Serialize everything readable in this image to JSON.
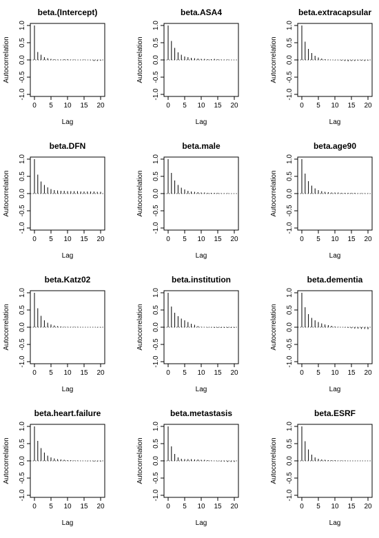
{
  "axis_labels": {
    "x": "Lag",
    "y": "Autocorrelation"
  },
  "chart_data": [
    {
      "type": "bar",
      "title": "beta.(Intercept)",
      "xlabel": "Lag",
      "ylabel": "Autocorrelation",
      "xlim": [
        0,
        20
      ],
      "ylim": [
        -1,
        1
      ],
      "x_ticks": [
        "0",
        "5",
        "10",
        "15",
        "20"
      ],
      "y_ticks": [
        "-1.0",
        "-0.5",
        "0.0",
        "0.5",
        "1.0"
      ],
      "lags": [
        0,
        1,
        2,
        3,
        4,
        5,
        6,
        7,
        8,
        9,
        10,
        11,
        12,
        13,
        14,
        15,
        16,
        17,
        18,
        19,
        20
      ],
      "values": [
        1.0,
        0.23,
        0.15,
        0.08,
        0.05,
        0.03,
        0.02,
        0.01,
        0.01,
        0.02,
        0.02,
        0.01,
        0.01,
        0.0,
        0.0,
        0.01,
        0.0,
        -0.01,
        -0.03,
        -0.03,
        -0.02
      ]
    },
    {
      "type": "bar",
      "title": "beta.ASA4",
      "xlabel": "Lag",
      "ylabel": "Autocorrelation",
      "xlim": [
        0,
        20
      ],
      "ylim": [
        -1,
        1
      ],
      "x_ticks": [
        "0",
        "5",
        "10",
        "15",
        "20"
      ],
      "y_ticks": [
        "-1.0",
        "-0.5",
        "0.0",
        "0.5",
        "1.0"
      ],
      "lags": [
        0,
        1,
        2,
        3,
        4,
        5,
        6,
        7,
        8,
        9,
        10,
        11,
        12,
        13,
        14,
        15,
        16,
        17,
        18,
        19,
        20
      ],
      "values": [
        1.0,
        0.55,
        0.35,
        0.22,
        0.15,
        0.1,
        0.08,
        0.06,
        0.05,
        0.04,
        0.03,
        0.03,
        0.02,
        0.02,
        0.03,
        0.02,
        0.01,
        0.01,
        0.01,
        0.0,
        0.0
      ]
    },
    {
      "type": "bar",
      "title": "beta.extracapsular",
      "xlabel": "Lag",
      "ylabel": "Autocorrelation",
      "xlim": [
        0,
        20
      ],
      "ylim": [
        -1,
        1
      ],
      "x_ticks": [
        "0",
        "5",
        "10",
        "15",
        "20"
      ],
      "y_ticks": [
        "-1.0",
        "-0.5",
        "0.0",
        "0.5",
        "1.0"
      ],
      "lags": [
        0,
        1,
        2,
        3,
        4,
        5,
        6,
        7,
        8,
        9,
        10,
        11,
        12,
        13,
        14,
        15,
        16,
        17,
        18,
        19,
        20
      ],
      "values": [
        1.0,
        0.53,
        0.32,
        0.2,
        0.12,
        0.07,
        0.04,
        0.02,
        0.01,
        0.0,
        -0.01,
        -0.01,
        -0.02,
        -0.03,
        -0.04,
        -0.03,
        -0.03,
        -0.02,
        -0.02,
        -0.03,
        -0.02
      ]
    },
    {
      "type": "bar",
      "title": "beta.DFN",
      "xlabel": "Lag",
      "ylabel": "Autocorrelation",
      "xlim": [
        0,
        20
      ],
      "ylim": [
        -1,
        1
      ],
      "x_ticks": [
        "0",
        "5",
        "10",
        "15",
        "20"
      ],
      "y_ticks": [
        "-1.0",
        "-0.5",
        "0.0",
        "0.5",
        "1.0"
      ],
      "lags": [
        0,
        1,
        2,
        3,
        4,
        5,
        6,
        7,
        8,
        9,
        10,
        11,
        12,
        13,
        14,
        15,
        16,
        17,
        18,
        19,
        20
      ],
      "values": [
        1.0,
        0.55,
        0.35,
        0.25,
        0.18,
        0.13,
        0.1,
        0.09,
        0.08,
        0.08,
        0.07,
        0.07,
        0.07,
        0.07,
        0.06,
        0.06,
        0.06,
        0.06,
        0.06,
        0.05,
        0.05
      ]
    },
    {
      "type": "bar",
      "title": "beta.male",
      "xlabel": "Lag",
      "ylabel": "Autocorrelation",
      "xlim": [
        0,
        20
      ],
      "ylim": [
        -1,
        1
      ],
      "x_ticks": [
        "0",
        "5",
        "10",
        "15",
        "20"
      ],
      "y_ticks": [
        "-1.0",
        "-0.5",
        "0.0",
        "0.5",
        "1.0"
      ],
      "lags": [
        0,
        1,
        2,
        3,
        4,
        5,
        6,
        7,
        8,
        9,
        10,
        11,
        12,
        13,
        14,
        15,
        16,
        17,
        18,
        19,
        20
      ],
      "values": [
        1.0,
        0.6,
        0.38,
        0.25,
        0.17,
        0.12,
        0.08,
        0.06,
        0.05,
        0.04,
        0.03,
        0.03,
        0.02,
        0.02,
        0.02,
        0.02,
        0.01,
        0.01,
        0.01,
        0.0,
        0.0
      ]
    },
    {
      "type": "bar",
      "title": "beta.age90",
      "xlabel": "Lag",
      "ylabel": "Autocorrelation",
      "xlim": [
        0,
        20
      ],
      "ylim": [
        -1,
        1
      ],
      "x_ticks": [
        "0",
        "5",
        "10",
        "15",
        "20"
      ],
      "y_ticks": [
        "-1.0",
        "-0.5",
        "0.0",
        "0.5",
        "1.0"
      ],
      "lags": [
        0,
        1,
        2,
        3,
        4,
        5,
        6,
        7,
        8,
        9,
        10,
        11,
        12,
        13,
        14,
        15,
        16,
        17,
        18,
        19,
        20
      ],
      "values": [
        1.0,
        0.58,
        0.36,
        0.23,
        0.15,
        0.1,
        0.07,
        0.05,
        0.04,
        0.03,
        0.03,
        0.03,
        0.02,
        0.02,
        0.02,
        0.02,
        0.02,
        0.01,
        0.01,
        0.01,
        0.01
      ]
    },
    {
      "type": "bar",
      "title": "beta.Katz02",
      "xlabel": "Lag",
      "ylabel": "Autocorrelation",
      "xlim": [
        0,
        20
      ],
      "ylim": [
        -1,
        1
      ],
      "x_ticks": [
        "0",
        "5",
        "10",
        "15",
        "20"
      ],
      "y_ticks": [
        "-1.0",
        "-0.5",
        "0.0",
        "0.5",
        "1.0"
      ],
      "lags": [
        0,
        1,
        2,
        3,
        4,
        5,
        6,
        7,
        8,
        9,
        10,
        11,
        12,
        13,
        14,
        15,
        16,
        17,
        18,
        19,
        20
      ],
      "values": [
        1.0,
        0.55,
        0.33,
        0.2,
        0.13,
        0.08,
        0.05,
        0.03,
        0.02,
        0.01,
        0.01,
        0.01,
        0.01,
        0.01,
        0.0,
        0.0,
        0.0,
        0.0,
        0.0,
        -0.01,
        -0.01
      ]
    },
    {
      "type": "bar",
      "title": "beta.institution",
      "xlabel": "Lag",
      "ylabel": "Autocorrelation",
      "xlim": [
        0,
        20
      ],
      "ylim": [
        -1,
        1
      ],
      "x_ticks": [
        "0",
        "5",
        "10",
        "15",
        "20"
      ],
      "y_ticks": [
        "-1.0",
        "-0.5",
        "0.0",
        "0.5",
        "1.0"
      ],
      "lags": [
        0,
        1,
        2,
        3,
        4,
        5,
        6,
        7,
        8,
        9,
        10,
        11,
        12,
        13,
        14,
        15,
        16,
        17,
        18,
        19,
        20
      ],
      "values": [
        1.0,
        0.6,
        0.42,
        0.32,
        0.25,
        0.2,
        0.15,
        0.1,
        0.07,
        0.03,
        0.01,
        0.0,
        -0.01,
        -0.01,
        -0.02,
        -0.02,
        -0.02,
        -0.02,
        -0.02,
        -0.02,
        -0.02
      ]
    },
    {
      "type": "bar",
      "title": "beta.dementia",
      "xlabel": "Lag",
      "ylabel": "Autocorrelation",
      "xlim": [
        0,
        20
      ],
      "ylim": [
        -1,
        1
      ],
      "x_ticks": [
        "0",
        "5",
        "10",
        "15",
        "20"
      ],
      "y_ticks": [
        "-1.0",
        "-0.5",
        "0.0",
        "0.5",
        "1.0"
      ],
      "lags": [
        0,
        1,
        2,
        3,
        4,
        5,
        6,
        7,
        8,
        9,
        10,
        11,
        12,
        13,
        14,
        15,
        16,
        17,
        18,
        19,
        20
      ],
      "values": [
        1.0,
        0.58,
        0.38,
        0.27,
        0.2,
        0.15,
        0.11,
        0.08,
        0.06,
        0.04,
        0.02,
        0.01,
        0.0,
        -0.01,
        -0.02,
        -0.03,
        -0.04,
        -0.04,
        -0.05,
        -0.05,
        -0.06
      ]
    },
    {
      "type": "bar",
      "title": "beta.heart.failure",
      "xlabel": "Lag",
      "ylabel": "Autocorrelation",
      "xlim": [
        0,
        20
      ],
      "ylim": [
        -1,
        1
      ],
      "x_ticks": [
        "0",
        "5",
        "10",
        "15",
        "20"
      ],
      "y_ticks": [
        "-1.0",
        "-0.5",
        "0.0",
        "0.5",
        "1.0"
      ],
      "lags": [
        0,
        1,
        2,
        3,
        4,
        5,
        6,
        7,
        8,
        9,
        10,
        11,
        12,
        13,
        14,
        15,
        16,
        17,
        18,
        19,
        20
      ],
      "values": [
        1.0,
        0.58,
        0.37,
        0.24,
        0.15,
        0.1,
        0.07,
        0.05,
        0.04,
        0.03,
        0.02,
        0.02,
        0.01,
        0.01,
        0.0,
        0.0,
        -0.01,
        -0.01,
        -0.02,
        -0.02,
        -0.02
      ]
    },
    {
      "type": "bar",
      "title": "beta.metastasis",
      "xlabel": "Lag",
      "ylabel": "Autocorrelation",
      "xlim": [
        0,
        20
      ],
      "ylim": [
        -1,
        1
      ],
      "x_ticks": [
        "0",
        "5",
        "10",
        "15",
        "20"
      ],
      "y_ticks": [
        "-1.0",
        "-0.5",
        "0.0",
        "0.5",
        "1.0"
      ],
      "lags": [
        0,
        1,
        2,
        3,
        4,
        5,
        6,
        7,
        8,
        9,
        10,
        11,
        12,
        13,
        14,
        15,
        16,
        17,
        18,
        19,
        20
      ],
      "values": [
        1.0,
        0.42,
        0.2,
        0.1,
        0.06,
        0.05,
        0.05,
        0.05,
        0.04,
        0.04,
        0.03,
        0.03,
        0.02,
        0.01,
        0.0,
        -0.01,
        -0.02,
        -0.02,
        -0.03,
        -0.03,
        -0.03
      ]
    },
    {
      "type": "bar",
      "title": "beta.ESRF",
      "xlabel": "Lag",
      "ylabel": "Autocorrelation",
      "xlim": [
        0,
        20
      ],
      "ylim": [
        -1,
        1
      ],
      "x_ticks": [
        "0",
        "5",
        "10",
        "15",
        "20"
      ],
      "y_ticks": [
        "-1.0",
        "-0.5",
        "0.0",
        "0.5",
        "1.0"
      ],
      "lags": [
        0,
        1,
        2,
        3,
        4,
        5,
        6,
        7,
        8,
        9,
        10,
        11,
        12,
        13,
        14,
        15,
        16,
        17,
        18,
        19,
        20
      ],
      "values": [
        1.0,
        0.57,
        0.33,
        0.18,
        0.1,
        0.06,
        0.04,
        0.03,
        0.02,
        0.02,
        0.02,
        0.01,
        0.01,
        0.01,
        0.0,
        0.0,
        0.0,
        0.0,
        0.0,
        0.0,
        0.0
      ]
    }
  ]
}
